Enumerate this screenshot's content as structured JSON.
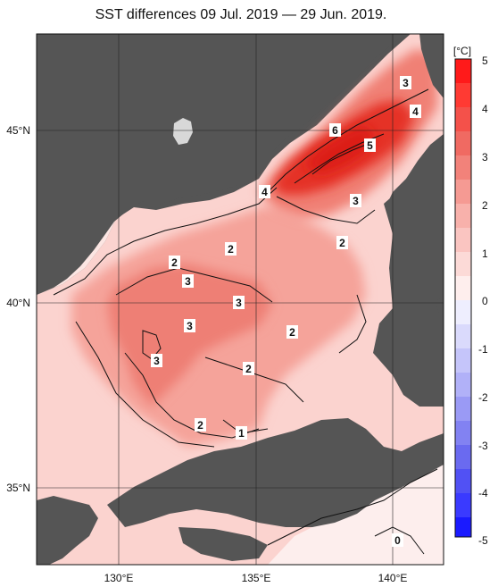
{
  "title": "SST differences 09 Jul. 2019 — 29 Jun. 2019.",
  "map": {
    "lon_range": [
      127,
      142
    ],
    "lat_range": [
      33,
      48
    ],
    "lon_ticks": [
      "130°E",
      "135°E",
      "140°E"
    ],
    "lat_ticks": [
      "45°N",
      "40°N",
      "35°N"
    ],
    "contour_labels": [
      "3",
      "4",
      "6",
      "5",
      "4",
      "3",
      "2",
      "2",
      "2",
      "3",
      "3",
      "3",
      "2",
      "3",
      "2",
      "3",
      "2",
      "1",
      "0"
    ]
  },
  "colorbar": {
    "unit": "[°C]",
    "ticks": [
      "5",
      "4",
      "3",
      "2",
      "1",
      "0",
      "-1",
      "-2",
      "-3",
      "-4",
      "-5"
    ]
  },
  "colors": {
    "land": "#555555",
    "warm_max": "#ff1a1a",
    "cold_max": "#1a1aff",
    "neutral": "#ffffff"
  }
}
